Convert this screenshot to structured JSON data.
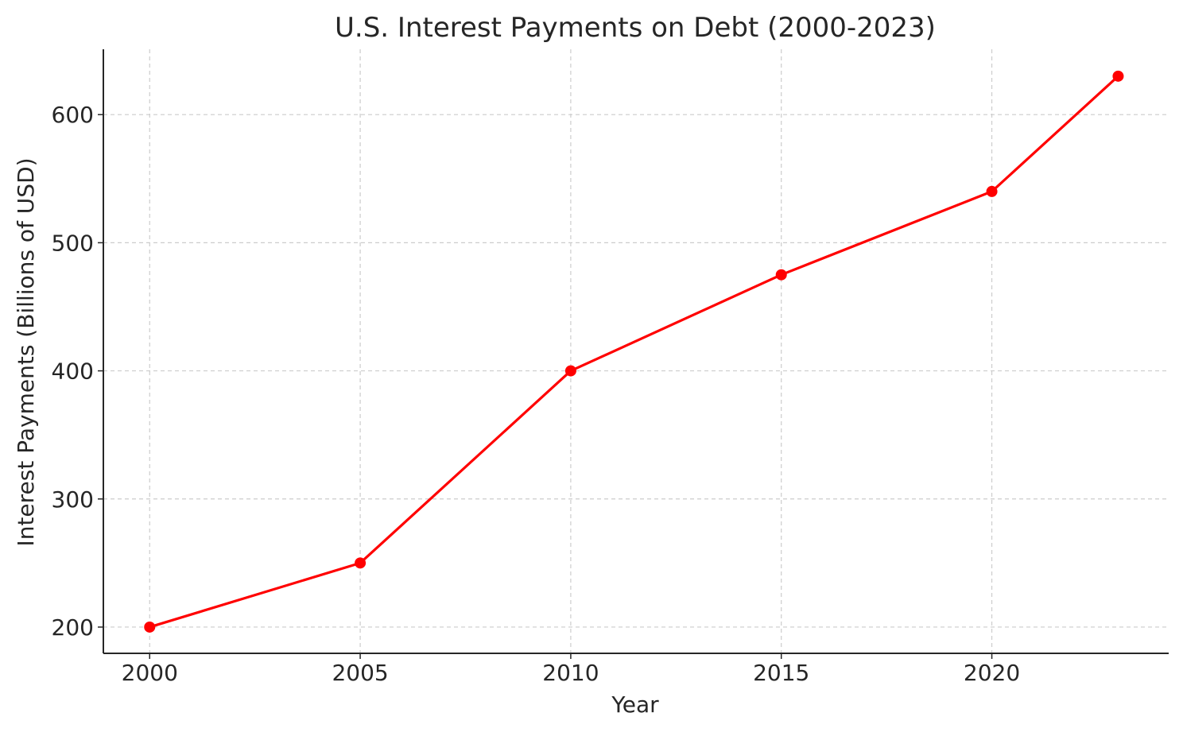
{
  "chart_data": {
    "type": "line",
    "title": "U.S. Interest Payments on Debt (2000-2023)",
    "xlabel": "Year",
    "ylabel": "Interest Payments (Billions of USD)",
    "x": [
      2000,
      2005,
      2010,
      2015,
      2020,
      2023
    ],
    "series": [
      {
        "values": [
          200,
          250,
          400,
          475,
          540,
          630
        ],
        "color": "#ff0000",
        "marker": "circle"
      }
    ],
    "xlim": [
      1998.9,
      2024.2
    ],
    "ylim": [
      179.5,
      651
    ],
    "xticks": [
      2000,
      2005,
      2010,
      2015,
      2020
    ],
    "xtick_labels": [
      "2000",
      "2005",
      "2010",
      "2015",
      "2020"
    ],
    "yticks": [
      200,
      300,
      400,
      500,
      600
    ],
    "ytick_labels": [
      "200",
      "300",
      "400",
      "500",
      "600"
    ],
    "grid": true,
    "grid_style": "dashed",
    "legend": "none"
  }
}
